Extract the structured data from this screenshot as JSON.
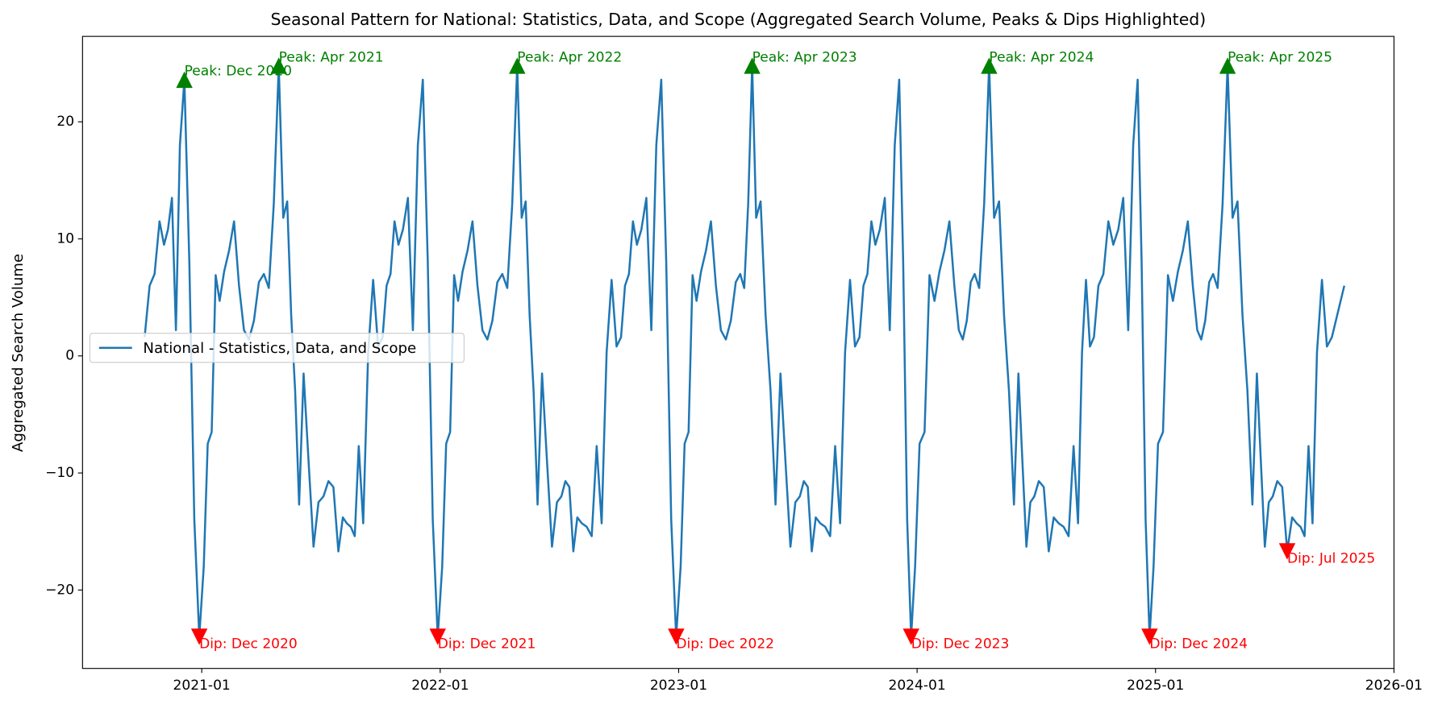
{
  "chart_data": {
    "type": "line",
    "title": "Seasonal Pattern for National: Statistics, Data, and Scope (Aggregated Search Volume, Peaks & Dips Highlighted)",
    "ylabel": "Aggregated Search Volume",
    "x": [
      "2020-10",
      "2020-10",
      "2020-10",
      "2020-10",
      "2020-11",
      "2020-11",
      "2020-11",
      "2020-11",
      "2020-11",
      "2020-12",
      "2020-12",
      "2020-12",
      "2020-12",
      "2021-01",
      "2021-01",
      "2021-01",
      "2021-01",
      "2021-01",
      "2021-02",
      "2021-02",
      "2021-02",
      "2021-02",
      "2021-03",
      "2021-03",
      "2021-03",
      "2021-03",
      "2021-04",
      "2021-04",
      "2021-04",
      "2021-04",
      "2021-05",
      "2021-05",
      "2021-05",
      "2021-05",
      "2021-05",
      "2021-06",
      "2021-06",
      "2021-06",
      "2021-06",
      "2021-07",
      "2021-07",
      "2021-07",
      "2021-07",
      "2021-08",
      "2021-08",
      "2021-08",
      "2021-08",
      "2021-08",
      "2021-09",
      "2021-09",
      "2021-09",
      "2021-09",
      "2021-10",
      "2021-10",
      "2021-10",
      "2021-10",
      "2021-10",
      "2021-11",
      "2021-11",
      "2021-11",
      "2021-11",
      "2021-12",
      "2021-12",
      "2021-12",
      "2021-12",
      "2022-01",
      "2022-01",
      "2022-01",
      "2022-01",
      "2022-01",
      "2022-02",
      "2022-02",
      "2022-02",
      "2022-02",
      "2022-03",
      "2022-03",
      "2022-03",
      "2022-03",
      "2022-04",
      "2022-04",
      "2022-04",
      "2022-04",
      "2022-05",
      "2022-05",
      "2022-05",
      "2022-05",
      "2022-05",
      "2022-06",
      "2022-06",
      "2022-06",
      "2022-06",
      "2022-07",
      "2022-07",
      "2022-07",
      "2022-07",
      "2022-07",
      "2022-08",
      "2022-08",
      "2022-08",
      "2022-08",
      "2022-09",
      "2022-09",
      "2022-09",
      "2022-09",
      "2022-10",
      "2022-10",
      "2022-10",
      "2022-10",
      "2022-10",
      "2022-11",
      "2022-11",
      "2022-11",
      "2022-11",
      "2022-12",
      "2022-12",
      "2022-12",
      "2022-12",
      "2023-01",
      "2023-01",
      "2023-01",
      "2023-01",
      "2023-01",
      "2023-02",
      "2023-02",
      "2023-02",
      "2023-02",
      "2023-03",
      "2023-03",
      "2023-03",
      "2023-03",
      "2023-04",
      "2023-04",
      "2023-04",
      "2023-04",
      "2023-04",
      "2023-05",
      "2023-05",
      "2023-05",
      "2023-05",
      "2023-06",
      "2023-06",
      "2023-06",
      "2023-06",
      "2023-07",
      "2023-07",
      "2023-07",
      "2023-07",
      "2023-07",
      "2023-08",
      "2023-08",
      "2023-08",
      "2023-08",
      "2023-09",
      "2023-09",
      "2023-09",
      "2023-09",
      "2023-10",
      "2023-10",
      "2023-10",
      "2023-10",
      "2023-10",
      "2023-11",
      "2023-11",
      "2023-11",
      "2023-11",
      "2023-12",
      "2023-12",
      "2023-12",
      "2023-12",
      "2023-12",
      "2024-01",
      "2024-01",
      "2024-01",
      "2024-01",
      "2024-02",
      "2024-02",
      "2024-02",
      "2024-02",
      "2024-03",
      "2024-03",
      "2024-03",
      "2024-03",
      "2024-03",
      "2024-04",
      "2024-04",
      "2024-04",
      "2024-04",
      "2024-05",
      "2024-05",
      "2024-05",
      "2024-05",
      "2024-06",
      "2024-06",
      "2024-06",
      "2024-06",
      "2024-06",
      "2024-07",
      "2024-07",
      "2024-07",
      "2024-07",
      "2024-08",
      "2024-08",
      "2024-08",
      "2024-08",
      "2024-09",
      "2024-09",
      "2024-09",
      "2024-09",
      "2024-09",
      "2024-10",
      "2024-10",
      "2024-10",
      "2024-10",
      "2024-11",
      "2024-11",
      "2024-11",
      "2024-11",
      "2024-12",
      "2024-12",
      "2024-12",
      "2024-12",
      "2024-12",
      "2025-01",
      "2025-01",
      "2025-01",
      "2025-01",
      "2025-02",
      "2025-02",
      "2025-02",
      "2025-02",
      "2025-03",
      "2025-03",
      "2025-03",
      "2025-03",
      "2025-03",
      "2025-04",
      "2025-04",
      "2025-04",
      "2025-04",
      "2025-05",
      "2025-05",
      "2025-05",
      "2025-05",
      "2025-06",
      "2025-06",
      "2025-06",
      "2025-06",
      "2025-06",
      "2025-07",
      "2025-07",
      "2025-07",
      "2025-07",
      "2025-08",
      "2025-08",
      "2025-08",
      "2025-08",
      "2025-08",
      "2025-09",
      "2025-09",
      "2025-09",
      "2025-09",
      "2025-10"
    ],
    "series": [
      {
        "name": "National - Statistics, Data, and Scope",
        "color": "#1f77b4",
        "values": [
          1.6,
          6,
          7,
          11.5,
          9.5,
          10.8,
          13.5,
          2.2,
          18,
          23.6,
          8,
          -14,
          -24,
          -18,
          -7.5,
          -6.5,
          6.9,
          4.7,
          7.2,
          9,
          11.5,
          6,
          2.2,
          1.4,
          3,
          6.3,
          7,
          5.8,
          13,
          24.8,
          11.8,
          13.2,
          3.5,
          -3,
          -12.7,
          -1.5,
          -9,
          -16.3,
          -12.5,
          -12,
          -10.7,
          -11.2,
          -16.7,
          -13.8,
          -14.3,
          -14.6,
          -15.4,
          -7.7,
          -14.3,
          0.3,
          6.5,
          0.8,
          1.6,
          6,
          7,
          11.5,
          9.5,
          10.8,
          13.5,
          2.2,
          18,
          23.6,
          8,
          -14,
          -24,
          -18,
          -7.5,
          -6.5,
          6.9,
          4.7,
          7.2,
          9,
          11.5,
          6,
          2.2,
          1.4,
          3,
          6.3,
          7,
          5.8,
          13,
          24.8,
          11.8,
          13.2,
          3.5,
          -3,
          -12.7,
          -1.5,
          -9,
          -16.3,
          -12.5,
          -12,
          -10.7,
          -11.2,
          -16.7,
          -13.8,
          -14.3,
          -14.6,
          -15.4,
          -7.7,
          -14.3,
          0.3,
          6.5,
          0.8,
          1.6,
          6,
          7,
          11.5,
          9.5,
          10.8,
          13.5,
          2.2,
          18,
          23.6,
          8,
          -14,
          -24,
          -18,
          -7.5,
          -6.5,
          6.9,
          4.7,
          7.2,
          9,
          11.5,
          6,
          2.2,
          1.4,
          3,
          6.3,
          7,
          5.8,
          13,
          24.8,
          11.8,
          13.2,
          3.5,
          -3,
          -12.7,
          -1.5,
          -9,
          -16.3,
          -12.5,
          -12,
          -10.7,
          -11.2,
          -16.7,
          -13.8,
          -14.3,
          -14.6,
          -15.4,
          -7.7,
          -14.3,
          0.3,
          6.5,
          0.8,
          1.6,
          6,
          7,
          11.5,
          9.5,
          10.8,
          13.5,
          2.2,
          18,
          23.6,
          8,
          -14,
          -24,
          -18,
          -7.5,
          -6.5,
          6.9,
          4.7,
          7.2,
          9,
          11.5,
          6,
          2.2,
          1.4,
          3,
          6.3,
          7,
          5.8,
          13,
          24.8,
          11.8,
          13.2,
          3.5,
          -3,
          -12.7,
          -1.5,
          -9,
          -16.3,
          -12.5,
          -12,
          -10.7,
          -11.2,
          -16.7,
          -13.8,
          -14.3,
          -14.6,
          -15.4,
          -7.7,
          -14.3,
          0.3,
          6.5,
          0.8,
          1.6,
          6,
          7,
          11.5,
          9.5,
          10.8,
          13.5,
          2.2,
          18,
          23.6,
          8,
          -14,
          -24,
          -18,
          -7.5,
          -6.5,
          6.9,
          4.7,
          7.2,
          9,
          11.5,
          6,
          2.2,
          1.4,
          3,
          6.3,
          7,
          5.8,
          13,
          24.8,
          11.8,
          13.2,
          3.5,
          -3,
          -12.7,
          -1.5,
          -9,
          -16.3,
          -12.5,
          -12,
          -10.7,
          -11.2,
          -16.7,
          -13.8,
          -14.3,
          -14.6,
          -15.4,
          -7.7,
          -14.3,
          0.3,
          6.5,
          0.8,
          1.6,
          6
        ]
      }
    ],
    "peak_color": "#008000",
    "dip_color": "#ff0000",
    "peaks": [
      {
        "x": "2020-12",
        "value": 23.6,
        "label": "Peak: Dec 2020"
      },
      {
        "x": "2021-04",
        "value": 24.8,
        "label": "Peak: Apr 2021"
      },
      {
        "x": "2022-04",
        "value": 24.8,
        "label": "Peak: Apr 2022"
      },
      {
        "x": "2023-04",
        "value": 24.8,
        "label": "Peak: Apr 2023"
      },
      {
        "x": "2024-04",
        "value": 24.8,
        "label": "Peak: Apr 2024"
      },
      {
        "x": "2025-04",
        "value": 24.8,
        "label": "Peak: Apr 2025"
      }
    ],
    "dips": [
      {
        "x": "2020-12",
        "value": -24,
        "label": "Dip: Dec 2020"
      },
      {
        "x": "2021-12",
        "value": -24,
        "label": "Dip: Dec 2021"
      },
      {
        "x": "2022-12",
        "value": -24,
        "label": "Dip: Dec 2022"
      },
      {
        "x": "2023-12",
        "value": -24,
        "label": "Dip: Dec 2023"
      },
      {
        "x": "2024-12",
        "value": -24,
        "label": "Dip: Dec 2024"
      },
      {
        "x": "2025-07",
        "value": -16.7,
        "label": "Dip: Jul 2025"
      }
    ],
    "xlim": [
      "2020-07",
      "2026-01"
    ],
    "xticks": [
      "2021-01",
      "2022-01",
      "2023-01",
      "2024-01",
      "2025-01",
      "2026-01"
    ],
    "ylim": [
      -26.7,
      27.3
    ],
    "yticks": [
      {
        "value": -20,
        "label": "−20"
      },
      {
        "value": -10,
        "label": "−10"
      },
      0,
      10,
      20
    ],
    "legend": "center left"
  }
}
